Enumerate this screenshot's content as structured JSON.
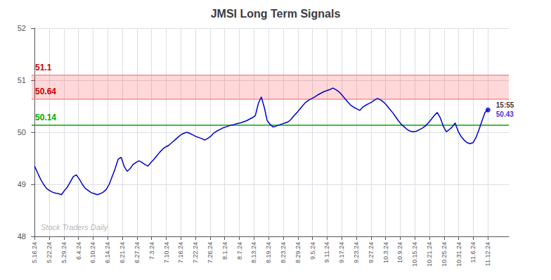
{
  "chart_data": {
    "type": "line",
    "title": "JMSI Long Term Signals",
    "color": "#0000cc",
    "x": [
      0,
      1,
      2,
      3,
      4,
      5,
      6,
      7,
      8,
      9,
      10,
      11,
      12,
      13,
      14,
      15,
      16,
      17,
      18,
      19,
      20,
      21,
      22,
      23,
      24,
      25,
      26,
      27,
      28,
      29,
      30,
      31,
      32,
      33,
      34,
      35,
      36,
      37,
      38,
      39,
      40,
      41,
      42,
      43,
      44,
      45,
      46,
      47,
      48,
      49,
      50,
      51,
      52,
      53,
      54,
      55,
      56,
      57,
      58,
      59,
      60,
      61,
      62,
      63,
      64,
      65,
      66,
      67,
      68,
      69,
      70,
      71,
      72,
      73,
      74,
      75,
      76,
      77,
      78,
      79,
      80,
      81,
      82,
      83,
      84,
      85,
      86,
      87,
      88,
      89,
      90,
      91,
      92,
      93,
      94,
      95,
      96,
      97,
      98,
      99,
      100,
      101,
      102,
      103,
      104,
      105,
      106,
      107,
      108,
      109,
      110,
      111,
      112,
      113,
      114,
      115,
      116,
      117,
      118,
      119,
      120,
      121,
      122,
      123,
      124,
      125,
      126,
      127,
      128,
      129,
      130,
      131,
      132,
      133,
      134,
      135,
      136,
      137,
      138,
      139,
      140,
      141,
      142,
      143,
      144,
      145,
      146,
      147,
      148,
      149,
      150,
      151,
      152
    ],
    "values": [
      49.35,
      49.22,
      49.1,
      49.0,
      48.92,
      48.88,
      48.85,
      48.83,
      48.82,
      48.8,
      48.88,
      48.95,
      49.05,
      49.15,
      49.18,
      49.1,
      49.0,
      48.92,
      48.88,
      48.84,
      48.82,
      48.8,
      48.82,
      48.85,
      48.9,
      49.0,
      49.15,
      49.3,
      49.48,
      49.52,
      49.35,
      49.25,
      49.3,
      49.38,
      49.42,
      49.45,
      49.42,
      49.38,
      49.35,
      49.42,
      49.48,
      49.55,
      49.62,
      49.68,
      49.72,
      49.75,
      49.8,
      49.85,
      49.9,
      49.95,
      49.98,
      50.0,
      49.98,
      49.95,
      49.92,
      49.9,
      49.88,
      49.85,
      49.88,
      49.92,
      49.98,
      50.02,
      50.05,
      50.08,
      50.1,
      50.12,
      50.14,
      50.15,
      50.17,
      50.18,
      50.2,
      50.22,
      50.25,
      50.28,
      50.32,
      50.55,
      50.68,
      50.48,
      50.22,
      50.15,
      50.1,
      50.12,
      50.14,
      50.16,
      50.18,
      50.2,
      50.25,
      50.32,
      50.38,
      50.45,
      50.52,
      50.58,
      50.62,
      50.65,
      50.68,
      50.72,
      50.75,
      50.78,
      50.8,
      50.82,
      50.85,
      50.82,
      50.78,
      50.72,
      50.65,
      50.58,
      50.52,
      50.48,
      50.45,
      50.42,
      50.48,
      50.52,
      50.55,
      50.58,
      50.62,
      50.65,
      50.62,
      50.58,
      50.52,
      50.45,
      50.38,
      50.3,
      50.22,
      50.15,
      50.1,
      50.05,
      50.02,
      50.01,
      50.02,
      50.05,
      50.08,
      50.12,
      50.18,
      50.25,
      50.32,
      50.38,
      50.28,
      50.12,
      50.01,
      50.05,
      50.1,
      50.18,
      50.02,
      49.92,
      49.85,
      49.8,
      49.78,
      49.8,
      49.9,
      50.05,
      50.22,
      50.38,
      50.43
    ],
    "xlim": [
      -1,
      159
    ],
    "xticks": [
      {
        "value": 0,
        "label": "5.16.24"
      },
      {
        "value": 4.903225806451613,
        "label": "5.22.24"
      },
      {
        "value": 9.806451612903226,
        "label": "5.29.24"
      },
      {
        "value": 14.709677419354838,
        "label": "6.4.24"
      },
      {
        "value": 19.612903225806452,
        "label": "6.10.24"
      },
      {
        "value": 24.516129032258064,
        "label": "6.14.24"
      },
      {
        "value": 29.419354838709676,
        "label": "6.21.24"
      },
      {
        "value": 34.32258064516129,
        "label": "6.27.24"
      },
      {
        "value": 39.225806451612904,
        "label": "7.3.24"
      },
      {
        "value": 44.12903225806452,
        "label": "7.10.24"
      },
      {
        "value": 49.03225806451613,
        "label": "7.16.24"
      },
      {
        "value": 53.935483870967744,
        "label": "7.22.24"
      },
      {
        "value": 58.83870967741935,
        "label": "7.26.24"
      },
      {
        "value": 63.74193548387097,
        "label": "8.1.24"
      },
      {
        "value": 68.64516129032258,
        "label": "8.7.24"
      },
      {
        "value": 73.54838709677419,
        "label": "8.13.24"
      },
      {
        "value": 78.45161290322581,
        "label": "8.19.24"
      },
      {
        "value": 83.35483870967742,
        "label": "8.23.24"
      },
      {
        "value": 88.25806451612904,
        "label": "8.29.24"
      },
      {
        "value": 93.16129032258064,
        "label": "9.5.24"
      },
      {
        "value": 98.06451612903226,
        "label": "9.11.24"
      },
      {
        "value": 102.96774193548387,
        "label": "9.17.24"
      },
      {
        "value": 107.87096774193549,
        "label": "9.23.24"
      },
      {
        "value": 112.7741935483871,
        "label": "9.27.24"
      },
      {
        "value": 117.67741935483872,
        "label": "10.3.24"
      },
      {
        "value": 122.58064516129032,
        "label": "10.9.24"
      },
      {
        "value": 127.48387096774194,
        "label": "10.15.24"
      },
      {
        "value": 132.38709677419354,
        "label": "10.21.24"
      },
      {
        "value": 137.29032258064515,
        "label": "10.25.24"
      },
      {
        "value": 142.19354838709677,
        "label": "10.31.24"
      },
      {
        "value": 147.09677419354838,
        "label": "11.6.24"
      },
      {
        "value": 152,
        "label": "11.12.24"
      }
    ],
    "ylim": [
      48,
      52
    ],
    "yticks": [
      48,
      49,
      50,
      51,
      52
    ],
    "grid": true,
    "hlines": [
      {
        "value": 50.14,
        "label": "50.14",
        "color": "#00aa00",
        "label_color": "#00aa00"
      },
      {
        "value": 50.64,
        "label": "50.64",
        "color": "#ff8888",
        "label_color": "#cc0000"
      },
      {
        "value": 51.1,
        "label": "51.1",
        "color": "#ff8888",
        "label_color": "#cc0000"
      }
    ],
    "band": {
      "from": 50.64,
      "to": 51.1,
      "color": "red"
    },
    "end_label": {
      "text": "15:55",
      "value": 50.43
    },
    "watermark": "Stock Traders Daily"
  }
}
